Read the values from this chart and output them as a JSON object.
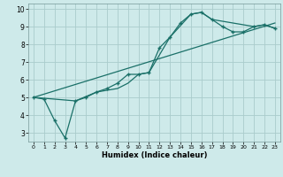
{
  "xlabel": "Humidex (Indice chaleur)",
  "bg_color": "#ceeaea",
  "grid_color": "#aacccc",
  "line_color": "#1a7068",
  "xlim": [
    -0.5,
    23.5
  ],
  "ylim": [
    2.5,
    10.3
  ],
  "xticks": [
    0,
    1,
    2,
    3,
    4,
    5,
    6,
    7,
    8,
    9,
    10,
    11,
    12,
    13,
    14,
    15,
    16,
    17,
    18,
    19,
    20,
    21,
    22,
    23
  ],
  "yticks": [
    3,
    4,
    5,
    6,
    7,
    8,
    9,
    10
  ],
  "line1_x": [
    0,
    1,
    2,
    3,
    4,
    5,
    6,
    7,
    8,
    9,
    10,
    11,
    12,
    13,
    14,
    15,
    16,
    17,
    18,
    19,
    20,
    21,
    22,
    23
  ],
  "line1_y": [
    5.0,
    4.9,
    3.7,
    2.7,
    4.8,
    5.0,
    5.3,
    5.5,
    5.8,
    6.3,
    6.3,
    6.4,
    7.8,
    8.4,
    9.2,
    9.7,
    9.8,
    9.4,
    9.0,
    8.7,
    8.7,
    9.0,
    9.1,
    8.9
  ],
  "line2_x": [
    0,
    4,
    6,
    8,
    9,
    10,
    11,
    13,
    15,
    16,
    17,
    21,
    22,
    23
  ],
  "line2_y": [
    5.0,
    4.8,
    5.3,
    5.5,
    5.8,
    6.3,
    6.4,
    8.4,
    9.7,
    9.8,
    9.4,
    9.0,
    9.1,
    8.9
  ],
  "line3_x": [
    0,
    23
  ],
  "line3_y": [
    5.0,
    9.2
  ]
}
